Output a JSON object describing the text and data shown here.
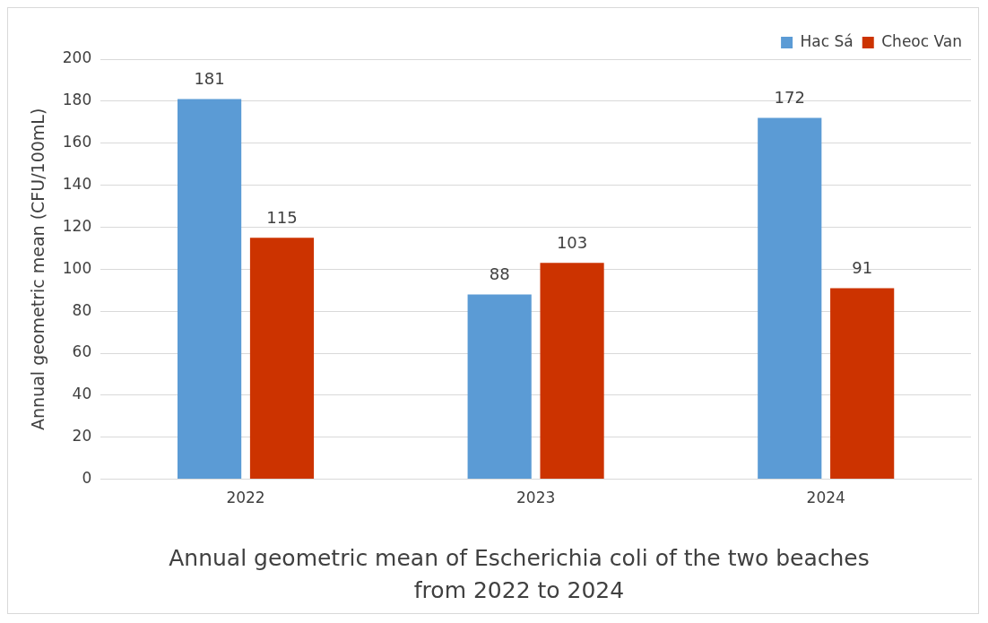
{
  "chart_data": {
    "type": "bar",
    "title": "Annual geometric mean of Escherichia coli of the two beaches from 2022 to 2024",
    "ylabel": "Annual geometric mean (CFU/100mL)",
    "categories": [
      "2022",
      "2023",
      "2024"
    ],
    "series": [
      {
        "name": "Hac Sá",
        "color": "#5b9bd5",
        "values": [
          181,
          88,
          172
        ]
      },
      {
        "name": "Cheoc Van",
        "color": "#cc3300",
        "values": [
          115,
          103,
          91
        ]
      }
    ],
    "ylim": [
      0,
      200
    ],
    "yticks": [
      0,
      20,
      40,
      60,
      80,
      100,
      120,
      140,
      160,
      180,
      200
    ],
    "grid": "y",
    "legend": "top right",
    "data_labels": true
  }
}
